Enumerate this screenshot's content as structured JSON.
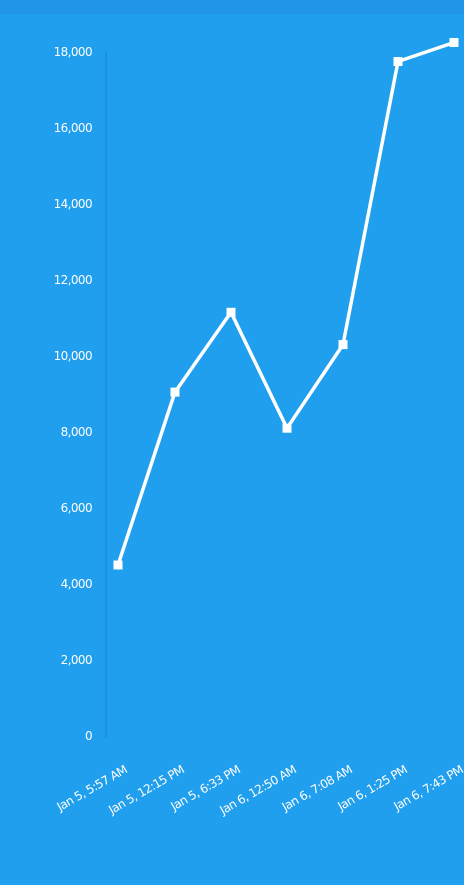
{
  "colors": {
    "background": "#209fee",
    "line": "#ffffff",
    "text": "#ffffff",
    "axis": "#1a8ed8"
  },
  "chart_data": {
    "type": "line",
    "title": "",
    "xlabel": "",
    "ylabel": "",
    "categories": [
      "Jan 5, 5:57 AM",
      "Jan 5, 12:15 PM",
      "Jan 5, 6:33 PM",
      "Jan 6, 12:50 AM",
      "Jan 6, 7:08 AM",
      "Jan 6, 1:25 PM",
      "Jan 6, 7:43 PM"
    ],
    "ytick_labels": [
      "0",
      "2,000",
      "4,000",
      "6,000",
      "8,000",
      "10,000",
      "12,000",
      "14,000",
      "16,000",
      "18,000"
    ],
    "ylim": [
      0,
      18000
    ],
    "grid": false,
    "legend": "none",
    "series": [
      {
        "values": [
          4500,
          9050,
          11150,
          8100,
          10300,
          17750,
          18250
        ]
      }
    ]
  }
}
